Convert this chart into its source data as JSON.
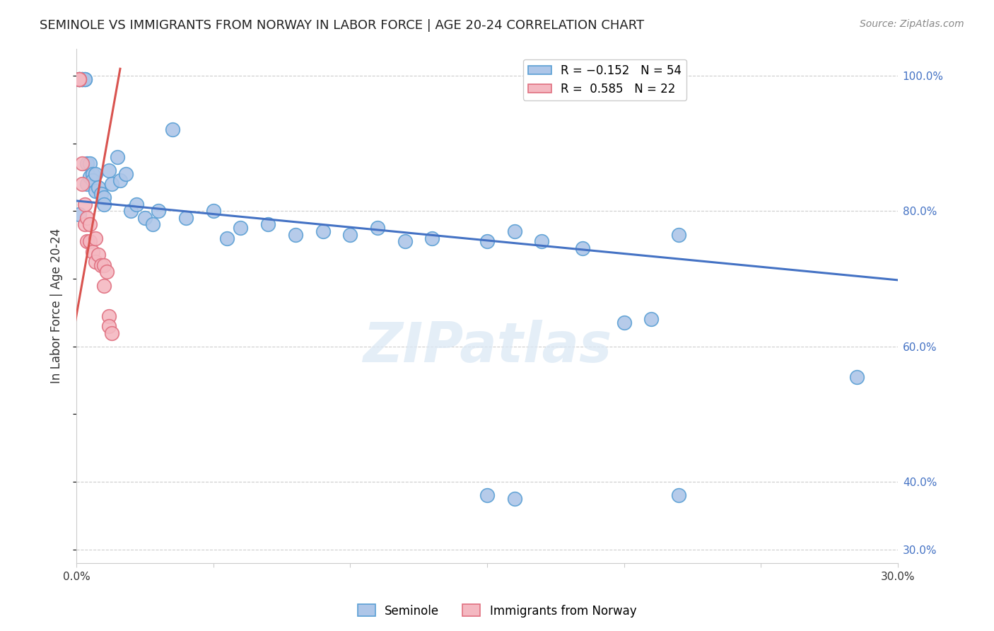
{
  "title": "SEMINOLE VS IMMIGRANTS FROM NORWAY IN LABOR FORCE | AGE 20-24 CORRELATION CHART",
  "source": "Source: ZipAtlas.com",
  "ylabel": "In Labor Force | Age 20-24",
  "xlim": [
    0.0,
    0.3
  ],
  "ylim": [
    0.28,
    1.04
  ],
  "yticks": [
    0.3,
    0.4,
    0.6,
    0.8,
    1.0
  ],
  "ytick_labels": [
    "30.0%",
    "40.0%",
    "60.0%",
    "80.0%",
    "100.0%"
  ],
  "xticks": [
    0.0,
    0.05,
    0.1,
    0.15,
    0.2,
    0.25,
    0.3
  ],
  "xtick_labels": [
    "0.0%",
    "",
    "",
    "",
    "",
    "",
    "30.0%"
  ],
  "blue_color": "#aec6e8",
  "blue_edge": "#5a9fd4",
  "pink_color": "#f4b8c1",
  "pink_edge": "#e07080",
  "blue_trend_color": "#4472c4",
  "pink_trend_color": "#d9534f",
  "legend_blue_label": "R = −0.152   N = 54",
  "legend_pink_label": "R =  0.585   N = 22",
  "seminole_label": "Seminole",
  "norway_label": "Immigrants from Norway",
  "watermark": "ZIPatlas",
  "blue_scatter_x": [
    0.001,
    0.001,
    0.001,
    0.002,
    0.002,
    0.002,
    0.003,
    0.003,
    0.004,
    0.004,
    0.005,
    0.005,
    0.006,
    0.006,
    0.007,
    0.007,
    0.008,
    0.009,
    0.01,
    0.01,
    0.012,
    0.013,
    0.015,
    0.016,
    0.018,
    0.02,
    0.022,
    0.025,
    0.028,
    0.03,
    0.035,
    0.04,
    0.05,
    0.055,
    0.06,
    0.07,
    0.08,
    0.09,
    0.1,
    0.11,
    0.12,
    0.13,
    0.15,
    0.16,
    0.17,
    0.185,
    0.2,
    0.21,
    0.22,
    0.15,
    0.16,
    0.22,
    0.285,
    0.001
  ],
  "blue_scatter_y": [
    0.995,
    0.995,
    0.995,
    0.995,
    0.995,
    0.995,
    0.995,
    0.995,
    0.87,
    0.84,
    0.87,
    0.85,
    0.855,
    0.845,
    0.83,
    0.855,
    0.835,
    0.825,
    0.82,
    0.81,
    0.86,
    0.84,
    0.88,
    0.845,
    0.855,
    0.8,
    0.81,
    0.79,
    0.78,
    0.8,
    0.92,
    0.79,
    0.8,
    0.76,
    0.775,
    0.78,
    0.765,
    0.77,
    0.765,
    0.775,
    0.755,
    0.76,
    0.755,
    0.77,
    0.755,
    0.745,
    0.635,
    0.64,
    0.765,
    0.38,
    0.375,
    0.38,
    0.555,
    0.795
  ],
  "pink_scatter_x": [
    0.001,
    0.001,
    0.001,
    0.002,
    0.002,
    0.003,
    0.003,
    0.004,
    0.004,
    0.005,
    0.005,
    0.006,
    0.007,
    0.007,
    0.008,
    0.009,
    0.01,
    0.01,
    0.011,
    0.012,
    0.012,
    0.013
  ],
  "pink_scatter_y": [
    0.995,
    0.995,
    0.995,
    0.87,
    0.84,
    0.81,
    0.78,
    0.79,
    0.755,
    0.78,
    0.755,
    0.74,
    0.725,
    0.76,
    0.735,
    0.72,
    0.72,
    0.69,
    0.71,
    0.645,
    0.63,
    0.62
  ],
  "blue_trend_x0": 0.0,
  "blue_trend_y0": 0.815,
  "blue_trend_x1": 0.3,
  "blue_trend_y1": 0.698,
  "pink_trend_x0": -0.002,
  "pink_trend_y0": 0.6,
  "pink_trend_x1": 0.016,
  "pink_trend_y1": 1.01
}
